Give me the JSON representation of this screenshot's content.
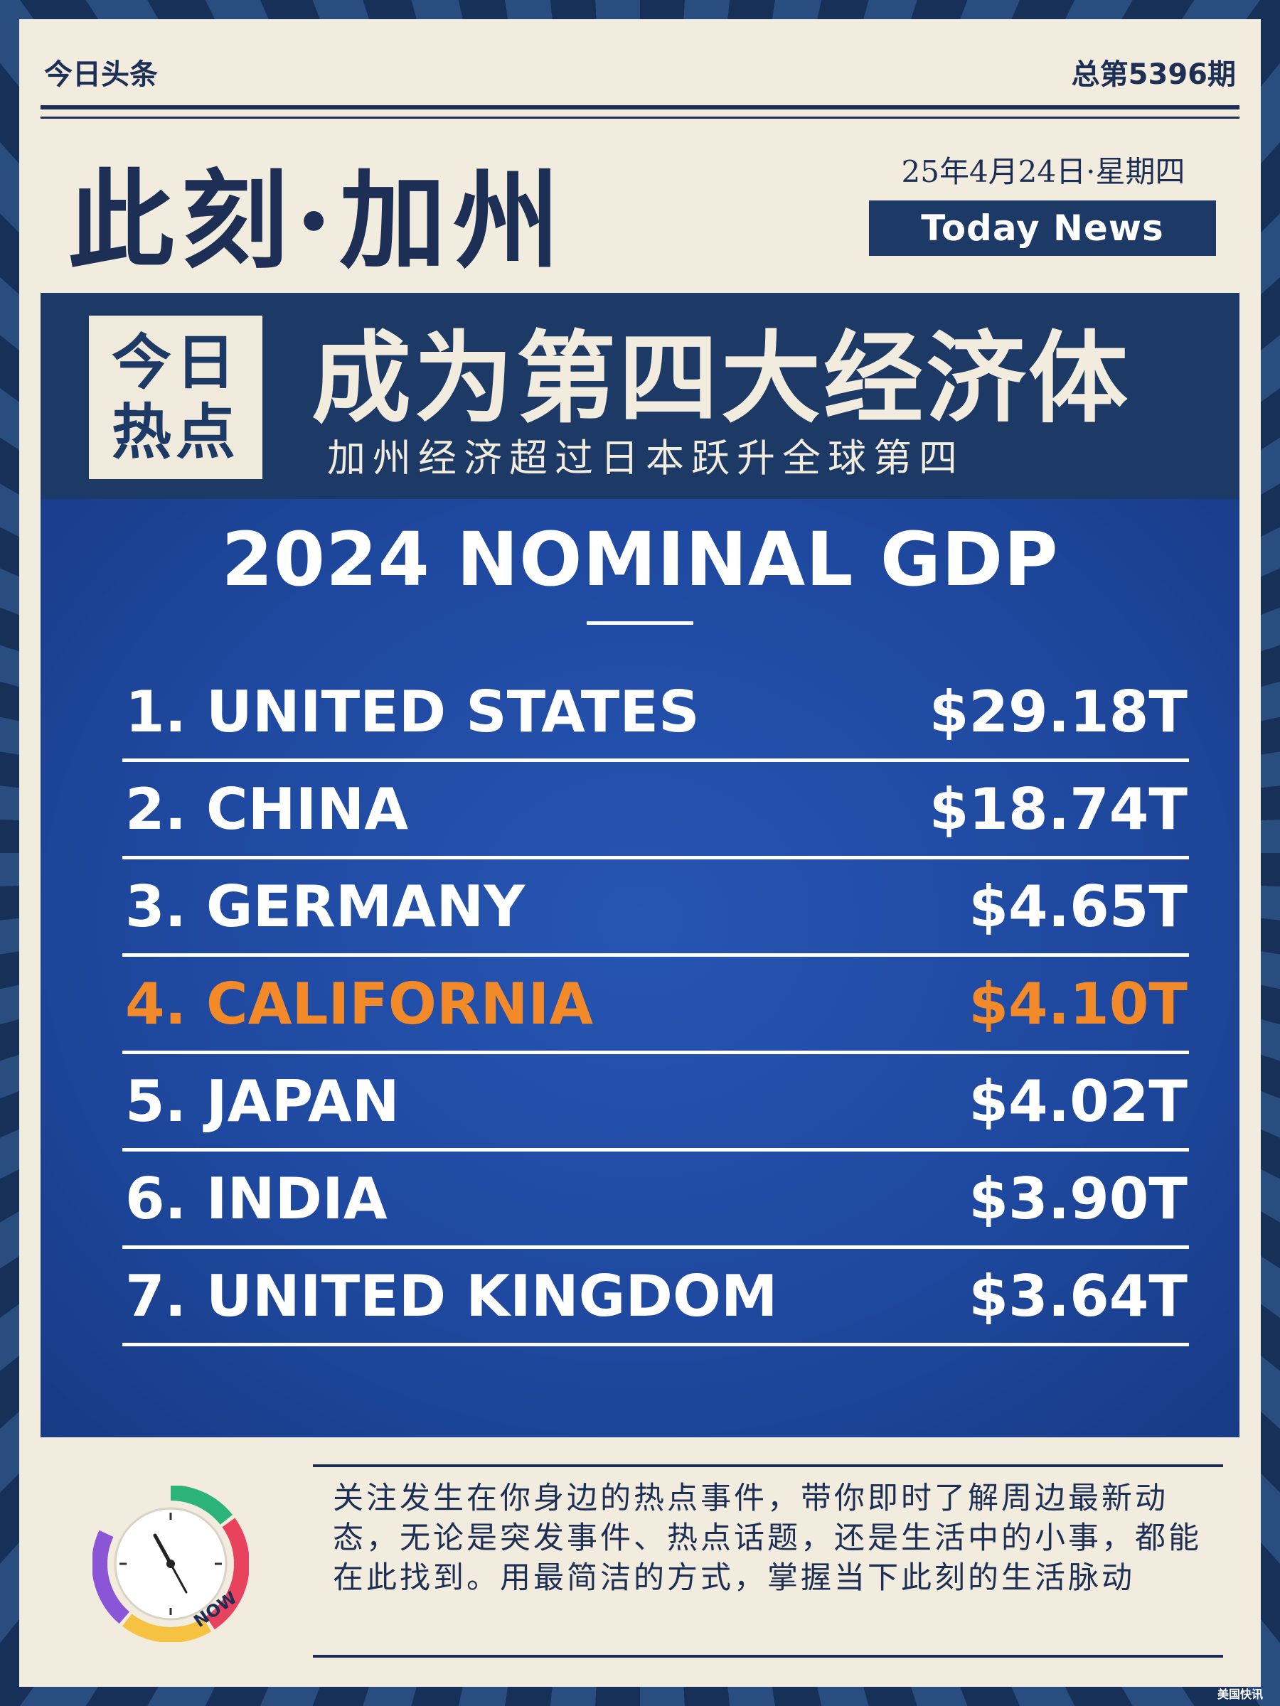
{
  "header": {
    "source": "今日头条",
    "issue": "总第5396期",
    "title": "此刻·加州",
    "date": "25年4月24日·星期四",
    "badge": "Today News"
  },
  "hot": {
    "badge_line1": "今日",
    "badge_line2": "热点",
    "headline": "成为第四大经济体",
    "subline": "加州经济超过日本跃升全球第四"
  },
  "gdp": {
    "title": "2024 NOMINAL GDP",
    "highlight_color": "#f28a2a",
    "rows": [
      {
        "label": "1. UNITED STATES",
        "value": "$29.18T"
      },
      {
        "label": "2. CHINA",
        "value": "$18.74T"
      },
      {
        "label": "3. GERMANY",
        "value": "$4.65T"
      },
      {
        "label": "4. CALIFORNIA",
        "value": "$4.10T"
      },
      {
        "label": "5. JAPAN",
        "value": "$4.02T"
      },
      {
        "label": "6. INDIA",
        "value": "$3.90T"
      },
      {
        "label": "7. UNITED KINGDOM",
        "value": "$3.64T"
      }
    ]
  },
  "footer": {
    "description": "关注发生在你身边的热点事件，带你即时了解周边最新动态，无论是突发事件、热点话题，还是生活中的小事，都能在此找到。用最简洁的方式，掌握当下此刻的生活脉动",
    "clock_label": "NOW",
    "watermark": "美国快讯"
  },
  "colors": {
    "navy": "#1d3a66",
    "paper": "#f1ecde",
    "panel_blue": "#2150a8",
    "orange": "#f28a2a"
  }
}
